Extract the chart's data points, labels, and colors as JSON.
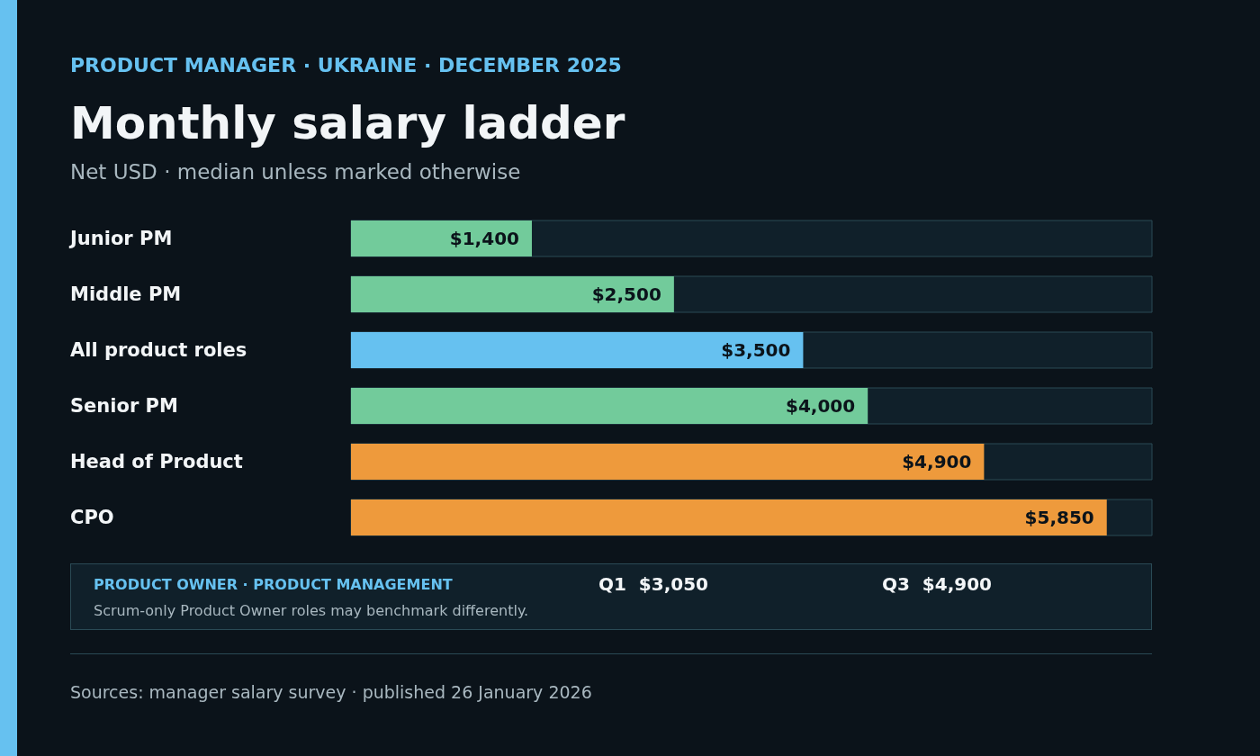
{
  "chart_data": {
    "type": "bar",
    "orientation": "horizontal",
    "title": "Monthly salary ladder",
    "subtitle": "Net USD · median unless marked otherwise",
    "categories": [
      "Junior PM",
      "Middle PM",
      "All product roles",
      "Senior PM",
      "Head of Product",
      "CPO"
    ],
    "values": [
      1400,
      2500,
      3500,
      4000,
      4900,
      5850
    ],
    "value_labels": [
      "$1,400",
      "$2,500",
      "$3,500",
      "$4,000",
      "$4,900",
      "$5,850"
    ],
    "colors": [
      "#72cb9b",
      "#72cb9b",
      "#66c1f0",
      "#72cb9b",
      "#ee9a3c",
      "#ee9a3c"
    ],
    "xlim": [
      0,
      6200
    ],
    "grid": false,
    "tick_labels": "y",
    "annotations": [
      "PRODUCT MANAGER · UKRAINE · DECEMBER 2025",
      "PRODUCT OWNER · PRODUCT MANAGEMENT",
      "Q1  $3,050",
      "Q3  $4,900",
      "Scrum-only Product Owner roles may benchmark differently.",
      "Sources: manager salary survey · published 26 January 2026"
    ]
  }
}
